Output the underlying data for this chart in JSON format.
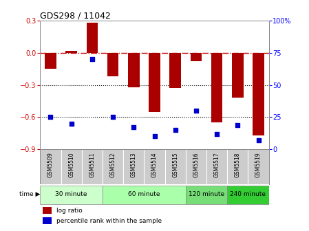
{
  "title": "GDS298 / 11042",
  "samples": [
    "GSM5509",
    "GSM5510",
    "GSM5511",
    "GSM5512",
    "GSM5513",
    "GSM5514",
    "GSM5515",
    "GSM5516",
    "GSM5517",
    "GSM5518",
    "GSM5519"
  ],
  "log_ratio": [
    -0.15,
    0.02,
    0.28,
    -0.22,
    -0.32,
    -0.55,
    -0.33,
    -0.08,
    -0.65,
    -0.42,
    -0.77
  ],
  "percentile": [
    25,
    20,
    70,
    25,
    17,
    10,
    15,
    30,
    12,
    19,
    7
  ],
  "ylim_left": [
    -0.9,
    0.3
  ],
  "ylim_right": [
    0,
    100
  ],
  "yticks_left": [
    -0.9,
    -0.6,
    -0.3,
    0.0,
    0.3
  ],
  "yticks_right": [
    0,
    25,
    50,
    75,
    100
  ],
  "bar_color": "#aa0000",
  "scatter_color": "#0000cc",
  "hline_color": "#cc0000",
  "dot_line_color": "#000000",
  "groups": [
    {
      "label": "30 minute",
      "start": 0,
      "end": 3,
      "color": "#ccffcc"
    },
    {
      "label": "60 minute",
      "start": 3,
      "end": 7,
      "color": "#aaffaa"
    },
    {
      "label": "120 minute",
      "start": 7,
      "end": 9,
      "color": "#77dd77"
    },
    {
      "label": "240 minute",
      "start": 9,
      "end": 11,
      "color": "#33cc33"
    }
  ],
  "legend_bar_label": "log ratio",
  "legend_scatter_label": "percentile rank within the sample",
  "bg_color": "#ffffff",
  "label_row_color": "#cccccc"
}
